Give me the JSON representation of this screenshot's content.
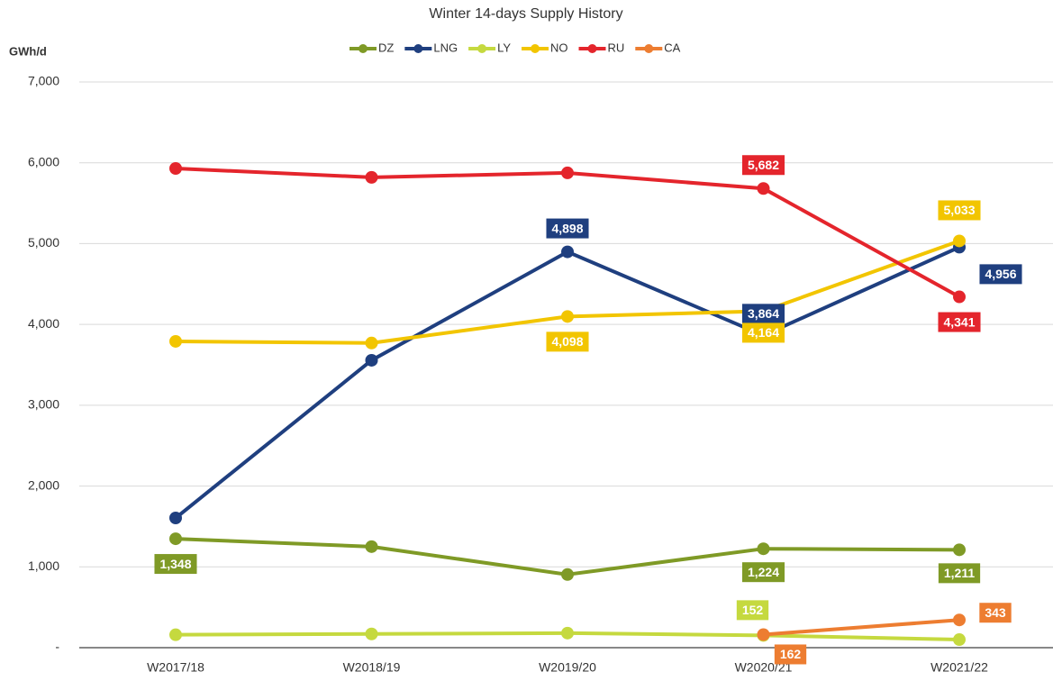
{
  "chart_data": {
    "type": "line",
    "title": "Winter 14-days Supply History",
    "y_label": "GWh/d",
    "categories": [
      "W2017/18",
      "W2018/19",
      "W2019/20",
      "W2020/21",
      "W2021/22"
    ],
    "ylim": [
      0,
      7000
    ],
    "yticks": [
      {
        "value": 0,
        "label": "-"
      },
      {
        "value": 1000,
        "label": "1,000"
      },
      {
        "value": 2000,
        "label": "2,000"
      },
      {
        "value": 3000,
        "label": "3,000"
      },
      {
        "value": 4000,
        "label": "4,000"
      },
      {
        "value": 5000,
        "label": "5,000"
      },
      {
        "value": 6000,
        "label": "6,000"
      },
      {
        "value": 7000,
        "label": "7,000"
      }
    ],
    "grid": true,
    "legend": "top",
    "series": [
      {
        "name": "DZ",
        "color": "#7f9a26",
        "values": [
          1348,
          1250,
          905,
          1224,
          1211
        ],
        "value_labels": [
          "1,348",
          null,
          null,
          "1,224",
          "1,211"
        ]
      },
      {
        "name": "LNG",
        "color": "#1f3f7f",
        "values": [
          1605,
          3556,
          4898,
          3864,
          4956
        ],
        "value_labels": [
          null,
          null,
          "4,898",
          "3,864",
          "4,956"
        ]
      },
      {
        "name": "LY",
        "color": "#c5d93f",
        "values": [
          160,
          170,
          180,
          152,
          100
        ],
        "value_labels": [
          null,
          null,
          null,
          "152",
          null
        ]
      },
      {
        "name": "NO",
        "color": "#f2c500",
        "values": [
          3790,
          3770,
          4098,
          4164,
          5033
        ],
        "value_labels": [
          null,
          null,
          "4,098",
          "4,164",
          "5,033"
        ]
      },
      {
        "name": "RU",
        "color": "#e4252c",
        "values": [
          5930,
          5820,
          5875,
          5682,
          4341
        ],
        "value_labels": [
          null,
          null,
          null,
          "5,682",
          "4,341"
        ]
      },
      {
        "name": "CA",
        "color": "#ed7d31",
        "values": [
          null,
          null,
          null,
          162,
          343
        ],
        "value_labels": [
          null,
          null,
          null,
          "162",
          "343"
        ]
      }
    ]
  }
}
